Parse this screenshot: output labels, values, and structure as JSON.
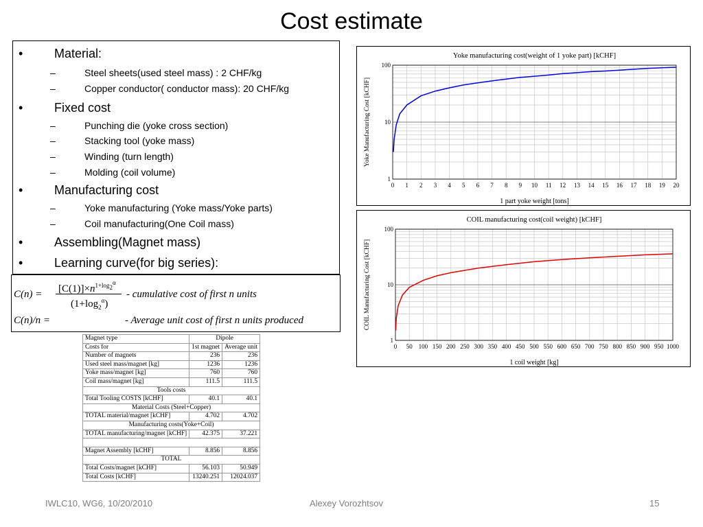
{
  "slide": {
    "title": "Cost estimate",
    "footer_left": "IWLC10, WG6, 10/20/2010",
    "footer_center": "Alexey Vorozhtsov",
    "footer_right": "15"
  },
  "bullets": [
    {
      "level": 1,
      "text": "Material:"
    },
    {
      "level": 2,
      "text": "Steel sheets(used steel mass) : 2 CHF/kg"
    },
    {
      "level": 2,
      "text": "Copper conductor( conductor mass): 20 CHF/kg"
    },
    {
      "level": 1,
      "text": "Fixed cost"
    },
    {
      "level": 2,
      "text": "Punching die (yoke cross section)"
    },
    {
      "level": 2,
      "text": "Stacking tool (yoke mass)"
    },
    {
      "level": 2,
      "text": "Winding (turn length)"
    },
    {
      "level": 2,
      "text": "Molding (coil volume)"
    },
    {
      "level": 1,
      "text": "Manufacturing cost"
    },
    {
      "level": 2,
      "text": "Yoke manufacturing (Yoke mass/Yoke parts)"
    },
    {
      "level": 2,
      "text": "Coil manufacturing(One Coil mass)"
    },
    {
      "level": 1,
      "text": "Assembling(Magnet mass)"
    },
    {
      "level": 1,
      "text": "Learning curve(for big series):"
    }
  ],
  "formula": {
    "line1_desc": "- cumulative cost of  first n units",
    "line2_lhs": "C(n)/n =",
    "line2_desc": "- Average unit cost of  first n units produced"
  },
  "chart_data": [
    {
      "type": "line",
      "title": "Yoke manufacturing cost(weight of 1 yoke part)  [kCHF]",
      "xlabel": "1 part yoke weight [tons]",
      "ylabel": "Yoke Manufacturing Cost [kCHF]",
      "xlim": [
        0,
        20
      ],
      "ylim": [
        1,
        100
      ],
      "yscale": "log",
      "grid": true,
      "xticks": [
        "0",
        "1",
        "2",
        "3",
        "4",
        "5",
        "6",
        "7",
        "8",
        "9",
        "10",
        "11",
        "12",
        "13",
        "14",
        "15",
        "16",
        "17",
        "18",
        "19",
        "20"
      ],
      "yticks": [
        "1",
        "10",
        "100"
      ],
      "series": [
        {
          "color": "#0000dd",
          "x": [
            0.05,
            0.1,
            0.25,
            0.5,
            1,
            2,
            3,
            4,
            5,
            6,
            7,
            8,
            9,
            10,
            11,
            12,
            13,
            14,
            15,
            16,
            17,
            18,
            19,
            20
          ],
          "y": [
            3,
            5,
            9,
            14,
            20,
            29,
            35,
            40,
            45,
            49,
            53,
            57,
            61,
            64,
            67,
            71,
            74,
            77,
            79,
            82,
            85,
            88,
            90,
            92
          ]
        }
      ]
    },
    {
      "type": "line",
      "title": "COIL manufacturing cost(coil weight)  [kCHF]",
      "xlabel": "1 coil weight [kg]",
      "ylabel": "COIL Manufacturing Cost [kCHF]",
      "xlim": [
        0,
        1000
      ],
      "ylim": [
        1,
        100
      ],
      "yscale": "log",
      "grid": true,
      "xticks": [
        "0",
        "50",
        "100",
        "150",
        "200",
        "250",
        "300",
        "350",
        "400",
        "450",
        "500",
        "550",
        "600",
        "650",
        "700",
        "750",
        "800",
        "850",
        "900",
        "950",
        "1000"
      ],
      "yticks": [
        "1",
        "10",
        "100"
      ],
      "series": [
        {
          "color": "#dd0000",
          "x": [
            1,
            3,
            10,
            25,
            50,
            100,
            150,
            200,
            300,
            400,
            500,
            600,
            700,
            800,
            900,
            1000
          ],
          "y": [
            1.5,
            2.5,
            4.2,
            6.5,
            9,
            12,
            14.5,
            16.5,
            20,
            23,
            26,
            28.5,
            30.5,
            32.5,
            34.5,
            36
          ]
        }
      ]
    }
  ],
  "table": {
    "rows": [
      {
        "kind": "row",
        "cells": [
          "Magnet type",
          "Dipole"
        ],
        "span2": true
      },
      {
        "kind": "row",
        "cells": [
          "Costs for",
          "1st magnet",
          "Average unit"
        ],
        "center": true
      },
      {
        "kind": "row",
        "cells": [
          "Number of magnets",
          "236",
          "236"
        ]
      },
      {
        "kind": "row",
        "cells": [
          "Used steel mass/magnet [kg]",
          "1236",
          "1236"
        ]
      },
      {
        "kind": "row",
        "cells": [
          "Yoke mass/magnet [kg]",
          "760",
          "760"
        ]
      },
      {
        "kind": "row",
        "cells": [
          "Coil mass/magnet [kg]",
          "111.5",
          "111.5"
        ]
      },
      {
        "kind": "header",
        "text": "Tools costs"
      },
      {
        "kind": "row",
        "cells": [
          "Total Tooling COSTS [kCHF]",
          "40.1",
          "40.1"
        ]
      },
      {
        "kind": "header",
        "text": "Material Costs (Steel+Copper)"
      },
      {
        "kind": "row",
        "cells": [
          "TOTAL material/magnet [kCHF]",
          "4.702",
          "4.702"
        ]
      },
      {
        "kind": "header",
        "text": "Manufacturing costs(Yoke+Coil)"
      },
      {
        "kind": "row",
        "cells": [
          "TOTAL manufacturing/magnet [kCHF]",
          "42.375",
          "37.221"
        ]
      },
      {
        "kind": "header",
        "text": ""
      },
      {
        "kind": "row",
        "cells": [
          "Magnet Assembly [kCHF]",
          "8.856",
          "8.856"
        ]
      },
      {
        "kind": "header",
        "text": "TOTAL"
      },
      {
        "kind": "row",
        "cells": [
          "Total Costs/magnet [kCHF]",
          "56.103",
          "50.949"
        ]
      },
      {
        "kind": "row",
        "cells": [
          "Total Costs [kCHF]",
          "13240.251",
          "12024.037"
        ]
      }
    ]
  }
}
